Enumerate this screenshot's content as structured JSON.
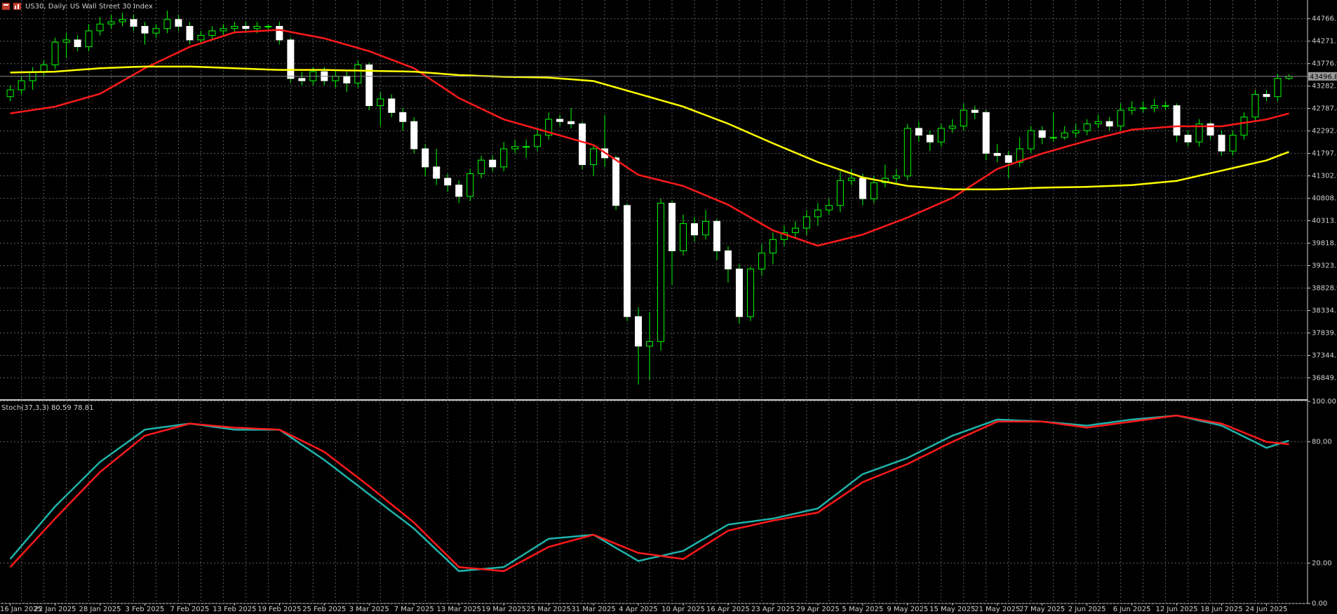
{
  "chart_data": [
    {
      "type": "candlestick",
      "title": "US30, Daily: US Wall Street 30 Index",
      "categories": [
        "16 Jan 2025",
        null,
        null,
        null,
        "22 Jan 2025",
        null,
        null,
        null,
        "28 Jan 2025",
        null,
        null,
        null,
        "3 Feb 2025",
        null,
        null,
        null,
        "7 Feb 2025",
        null,
        null,
        null,
        "13 Feb 2025",
        null,
        null,
        null,
        "19 Feb 2025",
        null,
        null,
        null,
        "25 Feb 2025",
        null,
        null,
        null,
        "3 Mar 2025",
        null,
        null,
        null,
        "7 Mar 2025",
        null,
        null,
        null,
        "13 Mar 2025",
        null,
        null,
        null,
        "19 Mar 2025",
        null,
        null,
        null,
        "25 Mar 2025",
        null,
        null,
        null,
        "31 Mar 2025",
        null,
        null,
        null,
        "4 Apr 2025",
        null,
        null,
        null,
        "10 Apr 2025",
        null,
        null,
        null,
        "16 Apr 2025",
        null,
        null,
        null,
        "23 Apr 2025",
        null,
        null,
        null,
        "29 Apr 2025",
        null,
        null,
        null,
        "5 May 2025",
        null,
        null,
        null,
        "9 May 2025",
        null,
        null,
        null,
        "15 May 2025",
        null,
        null,
        null,
        "21 May 2025",
        null,
        null,
        null,
        "27 May 2025",
        null,
        null,
        null,
        "2 Jun 2025",
        null,
        null,
        null,
        "6 Jun 2025",
        null,
        null,
        null,
        "12 Jun 2025",
        null,
        null,
        null,
        "18 Jun 2025",
        null,
        null,
        null,
        "24 Jun 2025",
        null,
        null
      ],
      "open": [
        43050,
        43200,
        43400,
        43600,
        43750,
        44250,
        44300,
        44150,
        44500,
        44650,
        44700,
        44750,
        44600,
        44450,
        44550,
        44750,
        44600,
        44300,
        44400,
        44500,
        44550,
        44600,
        44550,
        44600,
        44600,
        44300,
        43450,
        43400,
        43600,
        43400,
        43500,
        43350,
        43750,
        42850,
        43000,
        42700,
        42500,
        41900,
        41500,
        41250,
        41100,
        40850,
        41350,
        41650,
        41500,
        41900,
        41950,
        41950,
        42200,
        42550,
        42500,
        42450,
        41550,
        41900,
        41700,
        40650,
        38200,
        37550,
        37650,
        40700,
        39650,
        40250,
        40000,
        40300,
        39650,
        39250,
        38200,
        39250,
        39600,
        39900,
        40050,
        40150,
        40400,
        40550,
        40650,
        41200,
        41250,
        40800,
        41150,
        41250,
        41300,
        42350,
        42200,
        42050,
        42350,
        42400,
        42750,
        42700,
        41800,
        41750,
        41600,
        41900,
        42300,
        42150,
        42150,
        42250,
        42300,
        42450,
        42500,
        42400,
        42750,
        42800,
        42800,
        42850,
        42850,
        42200,
        42050,
        42450,
        42200,
        41850,
        42200,
        42600,
        43100,
        43050,
        43450
      ],
      "high": [
        43300,
        43500,
        43700,
        43850,
        44350,
        44450,
        44400,
        44650,
        44800,
        44850,
        44900,
        44850,
        44700,
        44650,
        44950,
        44850,
        44700,
        44500,
        44600,
        44650,
        44700,
        44700,
        44700,
        44650,
        44700,
        44350,
        43600,
        43700,
        43700,
        43650,
        43600,
        43850,
        43800,
        43150,
        43100,
        42800,
        42600,
        42000,
        41900,
        41350,
        41200,
        41450,
        41750,
        41750,
        42050,
        42100,
        42100,
        42350,
        42700,
        42650,
        42800,
        42500,
        42000,
        42650,
        41750,
        40700,
        38400,
        38300,
        40800,
        40750,
        40450,
        40400,
        40550,
        40350,
        39750,
        39350,
        39300,
        39800,
        40050,
        40200,
        40300,
        40550,
        40700,
        40800,
        41400,
        41450,
        41350,
        41300,
        41550,
        41450,
        42450,
        42500,
        42300,
        42450,
        42550,
        42900,
        42850,
        42750,
        42000,
        41850,
        42150,
        42400,
        42400,
        42700,
        42400,
        42450,
        42550,
        42650,
        42600,
        42900,
        42950,
        42950,
        43000,
        42950,
        42900,
        42300,
        42550,
        42500,
        42300,
        42300,
        42700,
        43200,
        43200,
        43550,
        43550
      ],
      "low": [
        42950,
        43100,
        43200,
        43500,
        43650,
        43900,
        44050,
        44050,
        44400,
        44550,
        44600,
        44500,
        44200,
        44350,
        44450,
        44500,
        44200,
        44200,
        44300,
        44400,
        44450,
        44450,
        44450,
        44500,
        44200,
        43350,
        43300,
        43300,
        43300,
        43250,
        43150,
        43250,
        42750,
        42400,
        42600,
        42300,
        41800,
        41300,
        41100,
        40950,
        40700,
        40750,
        41250,
        41400,
        41400,
        41800,
        41700,
        41850,
        42100,
        42400,
        42350,
        41450,
        41300,
        41500,
        40550,
        38100,
        36700,
        36800,
        37450,
        38900,
        39550,
        39850,
        39900,
        39450,
        38950,
        38050,
        38100,
        39100,
        39350,
        39750,
        39950,
        40000,
        40200,
        40450,
        40500,
        41100,
        40650,
        40700,
        41050,
        41150,
        41200,
        42050,
        41850,
        41950,
        42250,
        42300,
        42550,
        41650,
        41600,
        41250,
        41500,
        41800,
        42000,
        42050,
        42100,
        42150,
        42200,
        42350,
        42300,
        42300,
        42650,
        42700,
        42700,
        42750,
        42050,
        41950,
        41950,
        42100,
        41750,
        41750,
        42100,
        42500,
        42950,
        42950,
        43420
      ],
      "close": [
        43200,
        43400,
        43600,
        43750,
        44250,
        44300,
        44150,
        44500,
        44650,
        44700,
        44750,
        44600,
        44450,
        44550,
        44750,
        44600,
        44300,
        44400,
        44500,
        44550,
        44600,
        44550,
        44600,
        44600,
        44300,
        43450,
        43400,
        43600,
        43400,
        43500,
        43350,
        43750,
        42850,
        43000,
        42700,
        42500,
        41900,
        41500,
        41250,
        41100,
        40850,
        41350,
        41650,
        41500,
        41900,
        41950,
        41950,
        42200,
        42550,
        42500,
        42450,
        41550,
        41900,
        41700,
        40650,
        38200,
        37550,
        37650,
        40700,
        39650,
        40250,
        40000,
        40300,
        39650,
        39250,
        38200,
        39250,
        39600,
        39900,
        40050,
        40150,
        40400,
        40550,
        40650,
        41200,
        41250,
        40800,
        41150,
        41250,
        41300,
        42350,
        42200,
        42050,
        42350,
        42400,
        42750,
        42700,
        41800,
        41750,
        41600,
        41900,
        42300,
        42150,
        42150,
        42250,
        42300,
        42450,
        42500,
        42400,
        42750,
        42800,
        42800,
        42850,
        42850,
        42200,
        42050,
        42450,
        42200,
        41850,
        42200,
        42600,
        43100,
        43050,
        43450,
        43496.8
      ],
      "up_color": "#000000",
      "down_color": "#ffffff",
      "wick_color": "#00ff00",
      "overlays": [
        {
          "color": "#ff1a1a",
          "values": [
            42679,
            42717,
            42754,
            42792,
            42829,
            42900,
            42970,
            43041,
            43111,
            43252,
            43393,
            43534,
            43675,
            43793,
            43911,
            44028,
            44146,
            44226,
            44306,
            44386,
            44466,
            44480,
            44494,
            44508,
            44522,
            44475,
            44428,
            44381,
            44334,
            44264,
            44193,
            44123,
            44052,
            43958,
            43864,
            43769,
            43675,
            43511,
            43346,
            43182,
            43017,
            42900,
            42782,
            42665,
            42547,
            42477,
            42406,
            42336,
            42265,
            42195,
            42124,
            42054,
            41983,
            41818,
            41653,
            41489,
            41324,
            41263,
            41202,
            41141,
            41080,
            40977,
            40873,
            40770,
            40666,
            40525,
            40384,
            40243,
            40102,
            40017,
            39933,
            39848,
            39763,
            39824,
            39885,
            39947,
            40008,
            40102,
            40196,
            40290,
            40384,
            40492,
            40600,
            40709,
            40817,
            40977,
            41137,
            41296,
            41456,
            41541,
            41626,
            41710,
            41795,
            41865,
            41936,
            42006,
            42077,
            42138,
            42199,
            42260,
            42321,
            42340,
            42359,
            42377,
            42396,
            42396,
            42396,
            42396,
            42396,
            42434,
            42472,
            42509,
            42547,
            42613,
            42679
          ]
        },
        {
          "color": "#ffff00",
          "values": [
            43581,
            43586,
            43591,
            43595,
            43600,
            43619,
            43638,
            43656,
            43675,
            43685,
            43694,
            43704,
            43713,
            43713,
            43713,
            43713,
            43713,
            43704,
            43694,
            43685,
            43675,
            43666,
            43656,
            43647,
            43638,
            43638,
            43638,
            43638,
            43638,
            43633,
            43628,
            43624,
            43619,
            43614,
            43610,
            43605,
            43600,
            43581,
            43563,
            43544,
            43525,
            43516,
            43506,
            43497,
            43487,
            43483,
            43478,
            43474,
            43469,
            43450,
            43431,
            43412,
            43393,
            43323,
            43252,
            43182,
            43111,
            43041,
            42970,
            42900,
            42829,
            42735,
            42641,
            42547,
            42453,
            42345,
            42237,
            42128,
            42020,
            41917,
            41813,
            41710,
            41606,
            41522,
            41437,
            41353,
            41268,
            41221,
            41174,
            41127,
            41080,
            41061,
            41042,
            41023,
            41004,
            41004,
            41004,
            41004,
            41004,
            41014,
            41023,
            41033,
            41042,
            41047,
            41052,
            41056,
            41061,
            41071,
            41080,
            41090,
            41099,
            41123,
            41146,
            41170,
            41193,
            41249,
            41306,
            41362,
            41418,
            41475,
            41531,
            41588,
            41644,
            41738,
            41832
          ]
        }
      ],
      "last_price": 43496.8,
      "ylim": [
        36377,
        45180
      ],
      "yticks": [
        44766.5,
        44271.7,
        43776.9,
        43282.1,
        42787.4,
        42292.6,
        41797.7,
        41302.9,
        40808.1,
        40313.3,
        39818.5,
        39323.7,
        38828.9,
        38334.1,
        37839.3,
        37344.5,
        36849.7
      ],
      "grid": true
    },
    {
      "type": "line",
      "title": "Stoch(37,3,3) 80.59 78.81",
      "series": [
        {
          "color": "#20b2aa",
          "values": [
            22,
            28.5,
            35,
            41.5,
            48,
            53.5,
            59,
            64.5,
            70,
            74,
            78,
            82,
            86,
            86.8,
            87.5,
            88.3,
            89,
            88.3,
            87.5,
            86.8,
            86,
            86,
            86,
            86,
            86,
            82.3,
            78.5,
            74.8,
            71,
            66.8,
            62.5,
            58.3,
            54,
            49.8,
            45.5,
            41.3,
            37,
            31.8,
            26.5,
            21.3,
            16,
            16.5,
            17,
            17.5,
            18,
            21.5,
            25,
            28.5,
            32,
            32.5,
            33,
            33.5,
            34,
            30.8,
            27.5,
            24.3,
            21,
            22.3,
            23.5,
            24.8,
            26,
            29.3,
            32.5,
            35.8,
            39,
            39.8,
            40.5,
            41.3,
            42,
            43.3,
            44.5,
            45.8,
            47,
            51.3,
            55.5,
            59.8,
            64,
            66,
            68,
            70,
            72,
            74.8,
            77.5,
            80.3,
            83,
            85,
            87,
            89,
            91,
            90.8,
            90.5,
            90.3,
            90,
            89.5,
            89,
            88.5,
            88,
            88.8,
            89.5,
            90.3,
            91,
            91.5,
            92,
            92.5,
            93,
            91.8,
            90.5,
            89.3,
            88,
            85.3,
            82.5,
            79.8,
            77,
            78.8,
            80.59
          ]
        },
        {
          "color": "#ff1a1a",
          "values": [
            18,
            24,
            30,
            36,
            42,
            47.8,
            53.5,
            59.3,
            65,
            69.5,
            74,
            78.5,
            83,
            84.5,
            86,
            87.5,
            89,
            88.5,
            88,
            87.5,
            87,
            86.8,
            86.5,
            86.3,
            86,
            83.3,
            80.5,
            77.8,
            75,
            70.8,
            66.5,
            62.3,
            58,
            53.5,
            49,
            44.5,
            40,
            34.5,
            29,
            23.5,
            18,
            17.5,
            17,
            16.5,
            16,
            19,
            22,
            25,
            28,
            29.5,
            31,
            32.5,
            34,
            31.8,
            29.5,
            27.3,
            25,
            24.3,
            23.5,
            22.8,
            22,
            25.5,
            29,
            32.5,
            36,
            37.3,
            38.5,
            39.8,
            41,
            42,
            43,
            44,
            45,
            48.8,
            52.5,
            56.3,
            60,
            62.3,
            64.5,
            66.8,
            69,
            71.8,
            74.5,
            77.3,
            80,
            82.5,
            85,
            87.5,
            90,
            90,
            90,
            90,
            90,
            89.3,
            88.5,
            87.8,
            87,
            87.8,
            88.5,
            89.3,
            90,
            90.8,
            91.5,
            92.3,
            93,
            92,
            91,
            90,
            89,
            86.8,
            84.5,
            82.3,
            80,
            79.4,
            78.81
          ]
        }
      ],
      "ylim": [
        0,
        100
      ],
      "yticks": [
        {
          "value": 100,
          "label": "100.00"
        },
        {
          "value": 80,
          "label": "80.00"
        },
        {
          "value": 20,
          "label": "20.00"
        },
        {
          "value": 0,
          "label": "0.00"
        }
      ],
      "grid": true
    }
  ]
}
